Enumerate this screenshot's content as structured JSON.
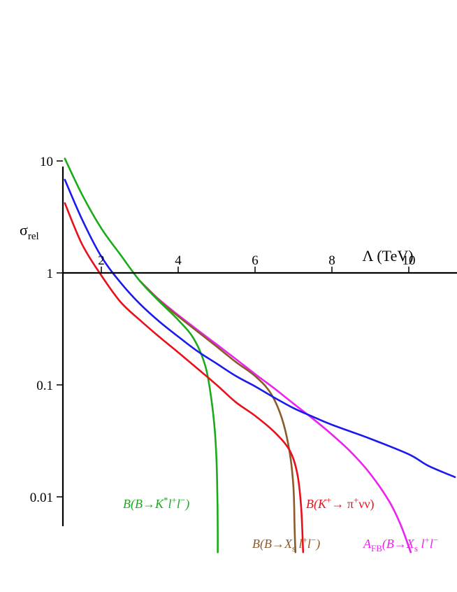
{
  "chart_data": {
    "type": "line",
    "xlabel": "Λ (TeV)",
    "ylabel": "σrel",
    "ylabel_main": "σ",
    "ylabel_sub": "rel",
    "y_scale": "log",
    "xlim": [
      0.9,
      11.2
    ],
    "ylim": [
      0.003,
      20
    ],
    "grid": false,
    "x_ticks": [
      {
        "value": 2,
        "label": "2"
      },
      {
        "value": 4,
        "label": "4"
      },
      {
        "value": 6,
        "label": "6"
      },
      {
        "value": 8,
        "label": "8"
      },
      {
        "value": 10,
        "label": "10"
      }
    ],
    "y_ticks": [
      {
        "value": 10,
        "label": "10"
      },
      {
        "value": 1,
        "label": "1"
      },
      {
        "value": 0.1,
        "label": "0.1"
      },
      {
        "value": 0.01,
        "label": "0.01"
      }
    ],
    "series": [
      {
        "name": "B(B→K*l+l−)",
        "color": "#1aab1a",
        "points": [
          [
            1.05,
            10.5
          ],
          [
            1.5,
            5.0
          ],
          [
            2.0,
            2.5
          ],
          [
            2.5,
            1.45
          ],
          [
            3.0,
            0.85
          ],
          [
            3.5,
            0.56
          ],
          [
            4.0,
            0.38
          ],
          [
            4.4,
            0.26
          ],
          [
            4.7,
            0.15
          ],
          [
            4.85,
            0.08
          ],
          [
            4.95,
            0.04
          ],
          [
            5.0,
            0.02
          ],
          [
            5.02,
            0.01
          ],
          [
            5.03,
            0.005
          ],
          [
            5.03,
            0.0032
          ]
        ]
      },
      {
        "name": "B(B→Xs l+l−)",
        "color": "#8b5a2b",
        "points": [
          [
            3.0,
            0.85
          ],
          [
            3.5,
            0.57
          ],
          [
            4.0,
            0.41
          ],
          [
            4.5,
            0.3
          ],
          [
            5.0,
            0.22
          ],
          [
            5.5,
            0.16
          ],
          [
            6.0,
            0.12
          ],
          [
            6.4,
            0.085
          ],
          [
            6.7,
            0.05
          ],
          [
            6.9,
            0.025
          ],
          [
            7.0,
            0.012
          ],
          [
            7.03,
            0.005
          ],
          [
            7.05,
            0.0032
          ]
        ]
      },
      {
        "name": "B(K+→π+νν)",
        "color": "#e8111a",
        "points": [
          [
            1.05,
            4.2
          ],
          [
            1.5,
            1.8
          ],
          [
            2.0,
            0.95
          ],
          [
            2.5,
            0.55
          ],
          [
            3.0,
            0.38
          ],
          [
            3.5,
            0.27
          ],
          [
            4.0,
            0.195
          ],
          [
            4.5,
            0.14
          ],
          [
            5.0,
            0.1
          ],
          [
            5.5,
            0.07
          ],
          [
            6.0,
            0.053
          ],
          [
            6.5,
            0.038
          ],
          [
            6.9,
            0.026
          ],
          [
            7.1,
            0.016
          ],
          [
            7.2,
            0.008
          ],
          [
            7.25,
            0.0032
          ]
        ]
      },
      {
        "name": "AFB(B→Xs l+l−)",
        "color": "#ee22ee",
        "points": [
          [
            3.0,
            0.85
          ],
          [
            3.5,
            0.58
          ],
          [
            4.0,
            0.42
          ],
          [
            4.5,
            0.31
          ],
          [
            5.0,
            0.23
          ],
          [
            5.5,
            0.17
          ],
          [
            6.0,
            0.125
          ],
          [
            6.5,
            0.093
          ],
          [
            7.0,
            0.068
          ],
          [
            7.5,
            0.05
          ],
          [
            8.0,
            0.036
          ],
          [
            8.5,
            0.025
          ],
          [
            9.0,
            0.016
          ],
          [
            9.5,
            0.009
          ],
          [
            9.8,
            0.0055
          ],
          [
            10.05,
            0.0032
          ]
        ]
      },
      {
        "name": "",
        "color": "#1a1aee",
        "points": [
          [
            1.05,
            6.8
          ],
          [
            1.5,
            3.0
          ],
          [
            2.0,
            1.4
          ],
          [
            2.5,
            0.82
          ],
          [
            3.0,
            0.53
          ],
          [
            3.5,
            0.37
          ],
          [
            4.0,
            0.27
          ],
          [
            4.5,
            0.2
          ],
          [
            5.0,
            0.155
          ],
          [
            5.5,
            0.12
          ],
          [
            6.0,
            0.097
          ],
          [
            6.5,
            0.077
          ],
          [
            7.0,
            0.062
          ],
          [
            7.5,
            0.052
          ],
          [
            8.0,
            0.044
          ],
          [
            9.0,
            0.033
          ],
          [
            10.0,
            0.024
          ],
          [
            10.5,
            0.019
          ],
          [
            11.2,
            0.015
          ]
        ]
      }
    ],
    "annotations": [
      {
        "series": 0,
        "text_parts": [
          {
            "t": "B(B→K",
            "style": "i"
          },
          {
            "t": "*",
            "style": "sup"
          },
          {
            "t": "l",
            "style": "i"
          },
          {
            "t": "+",
            "style": "sup"
          },
          {
            "t": "l",
            "style": "i"
          },
          {
            "t": "−",
            "style": "sup"
          },
          {
            "t": ")",
            "style": "i"
          }
        ],
        "anchor": "K*"
      },
      {
        "series": 1,
        "text_parts": [
          {
            "t": "B(B→X",
            "style": "i"
          },
          {
            "t": "s",
            "style": "sub"
          },
          {
            "t": " l",
            "style": "i"
          },
          {
            "t": "+",
            "style": "sup"
          },
          {
            "t": "l",
            "style": "i"
          },
          {
            "t": "−",
            "style": "sup"
          },
          {
            "t": ")",
            "style": "i"
          }
        ],
        "anchor": "Xs"
      },
      {
        "series": 2,
        "text_parts": [
          {
            "t": "B(K",
            "style": "i"
          },
          {
            "t": "+",
            "style": "sup"
          },
          {
            "t": "→ π",
            "style": "n"
          },
          {
            "t": "+",
            "style": "sup"
          },
          {
            "t": "νν)",
            "style": "n"
          }
        ],
        "anchor": "K"
      },
      {
        "series": 3,
        "text_parts": [
          {
            "t": "A",
            "style": "i"
          },
          {
            "t": "FB",
            "style": "sub"
          },
          {
            "t": "(B→X",
            "style": "i"
          },
          {
            "t": "s",
            "style": "sub"
          },
          {
            "t": " l",
            "style": "i"
          },
          {
            "t": "+",
            "style": "sup"
          },
          {
            "t": "l",
            "style": "i"
          },
          {
            "t": "−",
            "style": "sup"
          }
        ],
        "anchor": "AFB"
      }
    ]
  }
}
